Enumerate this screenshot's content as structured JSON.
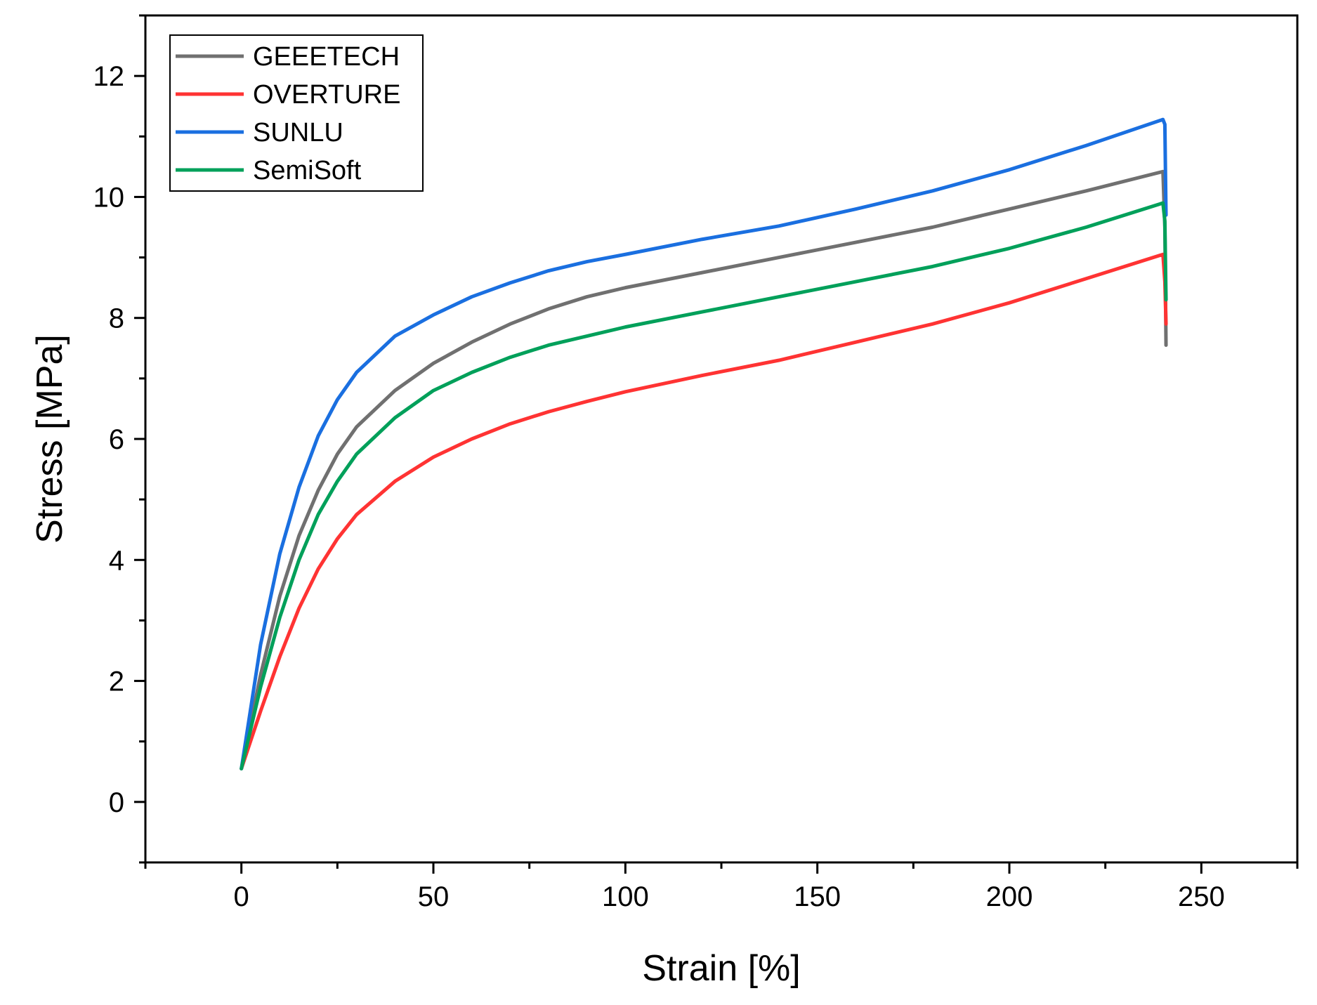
{
  "chart_data": {
    "type": "line",
    "title": "",
    "xlabel": "Strain [%]",
    "ylabel": "Stress [MPa]",
    "xlim": [
      -25,
      275
    ],
    "ylim": [
      -1,
      13
    ],
    "xticks": [
      0,
      50,
      100,
      150,
      200,
      250
    ],
    "xtick_labels": [
      "0",
      "50",
      "100",
      "150",
      "200",
      "250"
    ],
    "yticks": [
      0,
      2,
      4,
      6,
      8,
      10,
      12
    ],
    "ytick_labels": [
      "0",
      "2",
      "4",
      "6",
      "8",
      "10",
      "12"
    ],
    "x_minor_step": 25,
    "y_minor_step": 1,
    "grid": false,
    "legend_position": "top-left",
    "series": [
      {
        "name": "GEEETECH",
        "color": "#707070",
        "x": [
          0,
          5,
          10,
          15,
          20,
          25,
          30,
          40,
          50,
          60,
          70,
          80,
          90,
          100,
          120,
          140,
          160,
          180,
          200,
          220,
          240,
          240.5,
          240.8
        ],
        "y": [
          0.55,
          2.1,
          3.4,
          4.4,
          5.15,
          5.75,
          6.2,
          6.8,
          7.25,
          7.6,
          7.9,
          8.15,
          8.35,
          8.5,
          8.75,
          9.0,
          9.25,
          9.5,
          9.8,
          10.1,
          10.42,
          9.5,
          7.55
        ]
      },
      {
        "name": "OVERTURE",
        "color": "#ff3333",
        "x": [
          0,
          5,
          10,
          15,
          20,
          25,
          30,
          40,
          50,
          60,
          70,
          80,
          90,
          100,
          120,
          140,
          160,
          180,
          200,
          220,
          240,
          240.5,
          240.8
        ],
        "y": [
          0.55,
          1.5,
          2.4,
          3.2,
          3.85,
          4.35,
          4.75,
          5.3,
          5.7,
          6.0,
          6.25,
          6.45,
          6.62,
          6.78,
          7.05,
          7.3,
          7.6,
          7.9,
          8.25,
          8.65,
          9.05,
          8.6,
          7.9
        ]
      },
      {
        "name": "SUNLU",
        "color": "#1a6fe0",
        "x": [
          0,
          5,
          10,
          15,
          20,
          25,
          30,
          40,
          50,
          60,
          70,
          80,
          90,
          100,
          120,
          140,
          160,
          180,
          200,
          220,
          240,
          240.5,
          240.8
        ],
        "y": [
          0.55,
          2.6,
          4.1,
          5.2,
          6.05,
          6.65,
          7.1,
          7.7,
          8.05,
          8.35,
          8.58,
          8.78,
          8.93,
          9.05,
          9.3,
          9.52,
          9.8,
          10.1,
          10.45,
          10.85,
          11.28,
          11.2,
          9.7
        ]
      },
      {
        "name": "SemiSoft",
        "color": "#00a05a",
        "x": [
          0,
          5,
          10,
          15,
          20,
          25,
          30,
          40,
          50,
          60,
          70,
          80,
          90,
          100,
          120,
          140,
          160,
          180,
          200,
          220,
          240,
          240.5,
          240.8
        ],
        "y": [
          0.55,
          1.9,
          3.05,
          4.0,
          4.75,
          5.3,
          5.75,
          6.35,
          6.8,
          7.1,
          7.35,
          7.55,
          7.7,
          7.85,
          8.1,
          8.35,
          8.6,
          8.85,
          9.15,
          9.5,
          9.9,
          9.6,
          8.3
        ]
      }
    ]
  }
}
